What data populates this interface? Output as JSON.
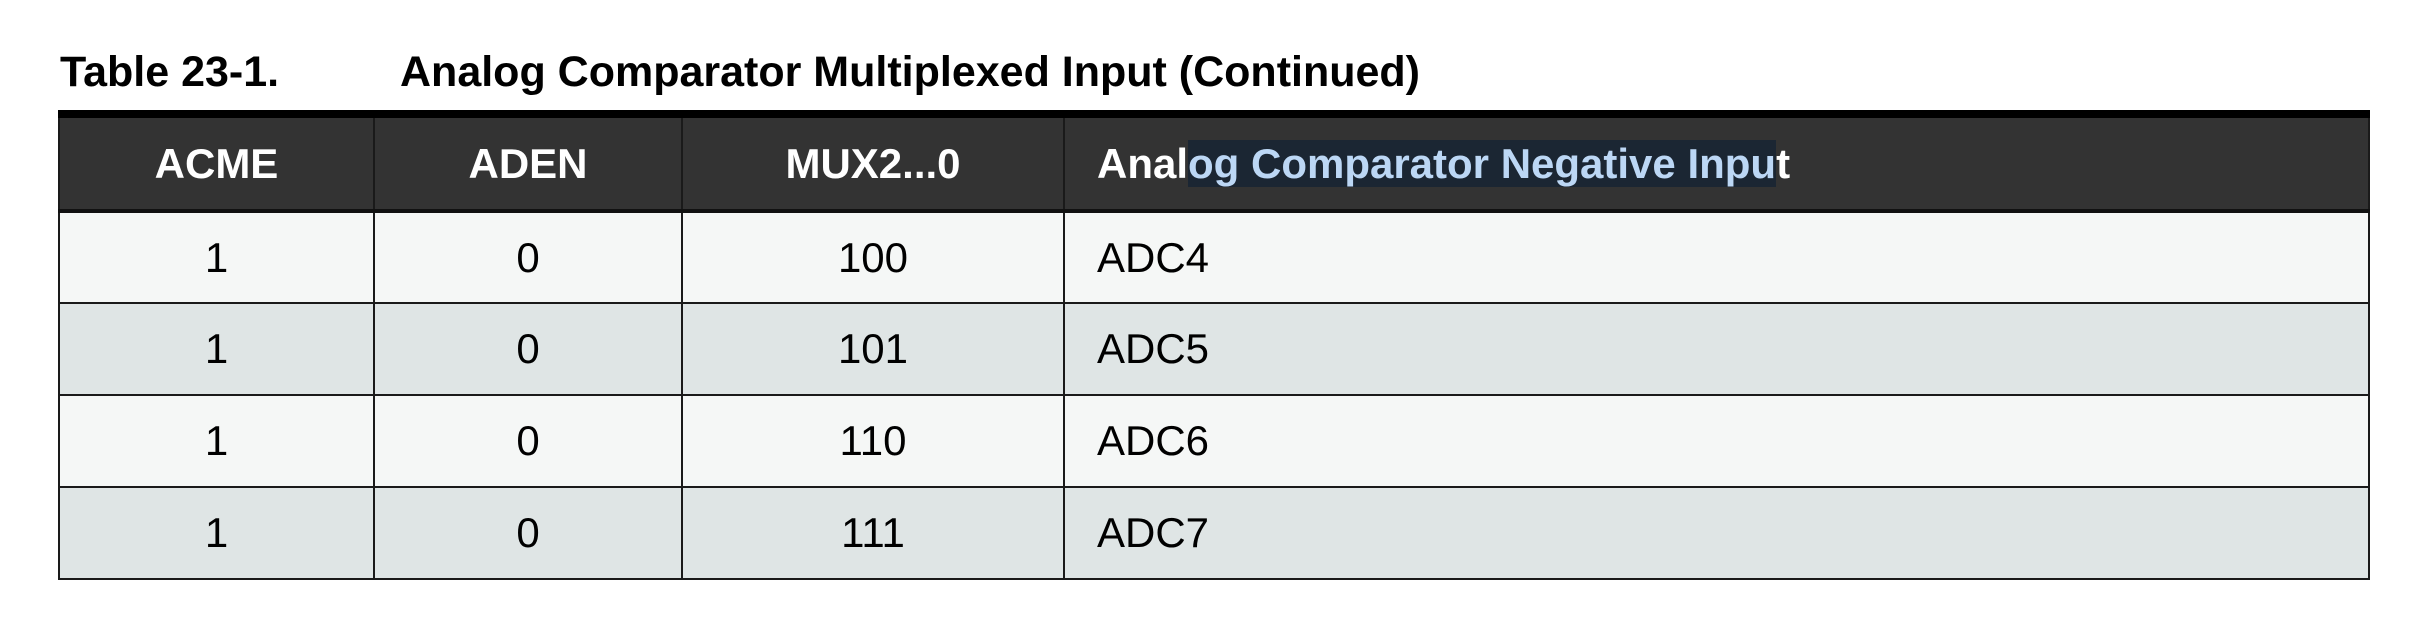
{
  "caption": {
    "number": "Table 23-1.",
    "title": "Analog Comparator Multiplexed Input (Continued)"
  },
  "table": {
    "headers": {
      "acme": "ACME",
      "aden": "ADEN",
      "mux": "MUX2...0",
      "input_prefix": "Anal",
      "input_highlighted": "og Comparator Negative Inpu",
      "input_suffix": "t"
    },
    "rows": [
      {
        "acme": "1",
        "aden": "0",
        "mux": "100",
        "input": "ADC4"
      },
      {
        "acme": "1",
        "aden": "0",
        "mux": "101",
        "input": "ADC5"
      },
      {
        "acme": "1",
        "aden": "0",
        "mux": "110",
        "input": "ADC6"
      },
      {
        "acme": "1",
        "aden": "0",
        "mux": "111",
        "input": "ADC7"
      }
    ]
  },
  "colors": {
    "header_bg": "#333333",
    "row_light": "#f5f7f6",
    "row_shaded": "#dfe5e5",
    "selection_text": "#bcd7f5"
  }
}
